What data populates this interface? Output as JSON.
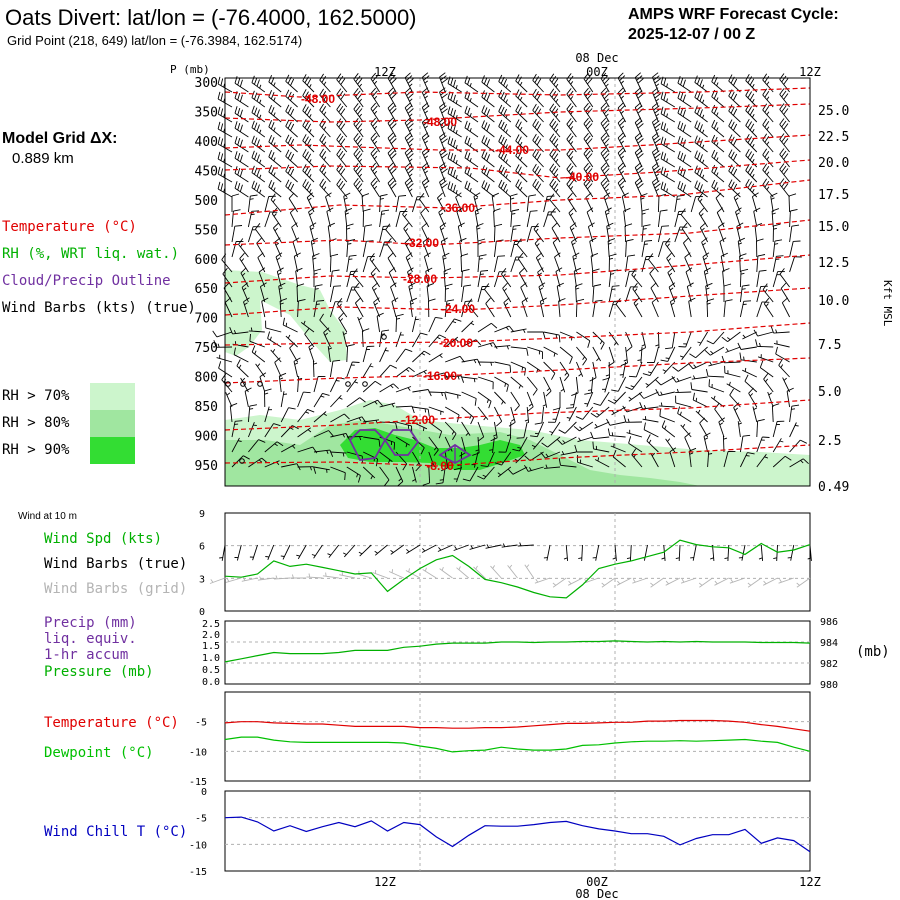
{
  "header": {
    "title": "Oats Divert:  lat/lon = (-76.4000, 162.5000)",
    "grid_point": "Grid Point (218, 649) lat/lon = (-76.3984, 162.5174)",
    "forecast_cycle_label": "AMPS WRF Forecast Cycle:",
    "forecast_cycle_value": "2025-12-07 / 00  Z"
  },
  "model_grid": {
    "label": "Model Grid ΔX:",
    "value": "0.889 km"
  },
  "colors": {
    "temperature": "#e00000",
    "rh": "#00b000",
    "cloud_precip": "#7030a0",
    "wind_barb": "#000000",
    "wind_barb_grid": "#b4b4b4",
    "dewpoint": "#00c000",
    "wind_chill": "#0000c0",
    "rh70": "#ccf5cc",
    "rh80": "#a0e6a0",
    "rh90": "#33dd33",
    "gridline": "#b0b0b0"
  },
  "legend": {
    "temperature": "Temperature (°C)",
    "rh": "RH (%, WRT liq. wat.)",
    "cloud": "Cloud/Precip Outline",
    "wind_barbs": "Wind Barbs (kts) (true)",
    "rh70": "RH > 70%",
    "rh80": "RH > 80%",
    "rh90": "RH > 90%"
  },
  "time_axis": {
    "top_labels": [
      "12Z",
      "00Z",
      "12Z"
    ],
    "bottom_labels": [
      "12Z",
      "00Z",
      "12Z"
    ],
    "date_label": "08 Dec"
  },
  "chart_data": [
    {
      "id": "cross_section",
      "type": "contour",
      "ylabel": "P (mb)",
      "y_ticks": [
        "300",
        "350",
        "400",
        "450",
        "500",
        "550",
        "600",
        "650",
        "700",
        "750",
        "800",
        "850",
        "900",
        "950"
      ],
      "right_axis_label": "Kft MSL",
      "right_ticks": [
        "25.0",
        "22.5",
        "20.0",
        "17.5",
        "15.0",
        "12.5",
        "10.0",
        "7.5",
        "5.0",
        "2.5",
        "0.49"
      ],
      "isotherm_labels": [
        "-48.00",
        "-48.00",
        "-44.00",
        "-40.00",
        "-36.00",
        "-32.00",
        "-28.00",
        "-24.00",
        "-20.00",
        "-16.00",
        "-12.00",
        "-8.00"
      ],
      "time_range_hours": [
        0,
        36
      ]
    },
    {
      "id": "wind_10m",
      "type": "line",
      "title": "Wind at 10 m",
      "series_label": "Wind Spd (kts)",
      "barbs_label": "Wind Barbs (true)",
      "barbs_grid_label": "Wind Barbs (grid)",
      "ylim": [
        0,
        9
      ],
      "y_ticks": [
        "0",
        "3",
        "6",
        "9"
      ],
      "x": [
        0,
        1,
        2,
        3,
        4,
        5,
        6,
        7,
        8,
        9,
        10,
        11,
        12,
        13,
        14,
        15,
        16,
        17,
        18,
        19,
        20,
        21,
        22,
        23,
        24,
        25,
        26,
        27,
        28,
        29,
        30,
        31,
        32,
        33,
        34,
        35,
        36
      ],
      "values": [
        3.2,
        3.1,
        3.4,
        4.6,
        4.1,
        4.3,
        4.0,
        3.7,
        3.4,
        3.5,
        1.8,
        2.9,
        3.9,
        4.7,
        5.1,
        4.1,
        2.9,
        2.6,
        2.2,
        1.7,
        1.3,
        1.2,
        2.4,
        3.9,
        4.3,
        4.6,
        5.0,
        5.4,
        6.5,
        6.1,
        5.9,
        5.8,
        5.2,
        6.2,
        5.4,
        5.6,
        6.1
      ]
    },
    {
      "id": "precip_pressure",
      "type": "line",
      "precip_label_1": "Precip (mm)",
      "precip_label_2": "liq. equiv.",
      "precip_label_3": "1-hr accum",
      "pressure_label": "Pressure (mb)",
      "right_unit": "(mb)",
      "left_ticks": [
        "2.5",
        "2.0",
        "1.5",
        "1.0",
        "0.5",
        "0.0"
      ],
      "right_ticks": [
        "986",
        "984",
        "982",
        "980"
      ],
      "ylim_pressure": [
        980,
        986
      ],
      "precip": [
        0,
        0,
        0,
        0,
        0,
        0,
        0,
        0,
        0,
        0,
        0,
        0,
        0,
        0,
        0,
        0,
        0,
        0,
        0,
        0,
        0,
        0,
        0,
        0,
        0,
        0,
        0,
        0,
        0,
        0,
        0,
        0,
        0,
        0,
        0,
        0,
        0
      ],
      "pressure": [
        982.1,
        982.4,
        982.7,
        983.0,
        982.9,
        982.9,
        982.9,
        983.0,
        983.2,
        983.2,
        983.2,
        983.5,
        983.6,
        983.8,
        983.9,
        983.9,
        983.9,
        984.0,
        984.0,
        983.95,
        984.0,
        984.0,
        984.05,
        984.05,
        984.1,
        984.05,
        984.0,
        984.05,
        984.0,
        984.05,
        984.0,
        984.0,
        984.0,
        983.95,
        983.95,
        983.95,
        983.9
      ]
    },
    {
      "id": "temperature",
      "type": "line",
      "temperature_label": "Temperature (°C)",
      "dewpoint_label": "Dewpoint (°C)",
      "ylim": [
        -15,
        0
      ],
      "y_ticks": [
        "-5",
        "-10",
        "-15"
      ],
      "temperature": [
        -5.2,
        -5.0,
        -5.0,
        -5.2,
        -5.3,
        -5.4,
        -5.4,
        -5.6,
        -5.8,
        -5.8,
        -5.8,
        -5.8,
        -6.0,
        -6.0,
        -6.1,
        -6.1,
        -6.0,
        -6.0,
        -5.9,
        -5.7,
        -5.5,
        -5.3,
        -5.3,
        -5.2,
        -5.1,
        -5.1,
        -4.9,
        -4.9,
        -4.8,
        -4.8,
        -4.8,
        -4.9,
        -5.1,
        -5.5,
        -5.8,
        -6.2,
        -6.6
      ],
      "dewpoint": [
        -8.0,
        -7.6,
        -7.6,
        -8.1,
        -8.4,
        -8.5,
        -8.5,
        -8.5,
        -8.5,
        -8.5,
        -8.5,
        -8.6,
        -9.1,
        -9.5,
        -10.1,
        -9.9,
        -9.8,
        -9.3,
        -9.6,
        -9.8,
        -9.8,
        -9.6,
        -9.0,
        -8.9,
        -8.6,
        -8.4,
        -8.3,
        -8.3,
        -8.2,
        -8.3,
        -8.2,
        -8.1,
        -8.0,
        -8.3,
        -8.5,
        -9.3,
        -10.0
      ]
    },
    {
      "id": "wind_chill",
      "type": "line",
      "label": "Wind Chill T (°C)",
      "ylim": [
        -15,
        0
      ],
      "y_ticks": [
        "0",
        "-5",
        "-10",
        "-15"
      ],
      "values": [
        -5.0,
        -4.9,
        -5.8,
        -7.5,
        -6.5,
        -7.6,
        -6.7,
        -5.9,
        -6.7,
        -5.6,
        -7.5,
        -5.9,
        -6.3,
        -8.6,
        -10.4,
        -8.3,
        -6.5,
        -6.6,
        -6.6,
        -6.3,
        -5.9,
        -5.7,
        -6.5,
        -7.1,
        -7.5,
        -8.0,
        -8.0,
        -8.5,
        -10.1,
        -8.9,
        -8.2,
        -8.2,
        -7.2,
        -9.8,
        -8.8,
        -9.3,
        -11.4
      ]
    }
  ]
}
